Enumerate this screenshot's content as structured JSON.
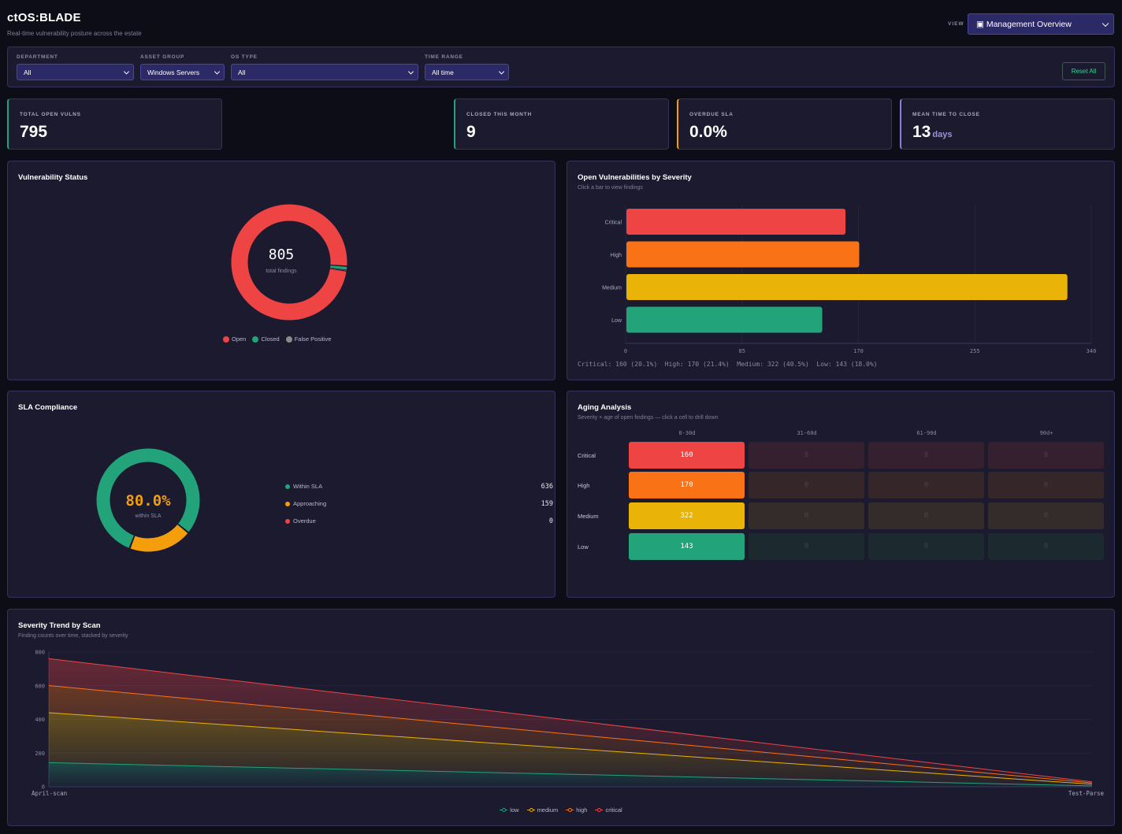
{
  "header": {
    "title": "ctOS:BLADE",
    "subtitle": "Real-time vulnerability posture across the estate",
    "view_label": "VIEW",
    "view_value": "▣ Management Overview"
  },
  "filters": [
    {
      "label": "DEPARTMENT",
      "value": "All"
    },
    {
      "label": "ASSET GROUP",
      "value": "Windows Servers"
    },
    {
      "label": "OS TYPE",
      "value": "All"
    },
    {
      "label": "TIME RANGE",
      "value": "All time"
    }
  ],
  "reset_label": "Reset All",
  "kpis": [
    {
      "label": "TOTAL OPEN VULNS",
      "value": "795",
      "unit": "",
      "color": "#22a37a"
    },
    {
      "label": "CLOSED THIS MONTH",
      "value": "9",
      "unit": "",
      "color": "#22a37a"
    },
    {
      "label": "OVERDUE SLA",
      "value": "0.0%",
      "unit": "",
      "color": "#f59e0b"
    },
    {
      "label": "MEAN TIME TO CLOSE",
      "value": "13",
      "unit": "days",
      "color": "#8b7fe0"
    }
  ],
  "status_panel": {
    "title": "Vulnerability Status",
    "center_value": "805",
    "center_label": "total findings",
    "legend": [
      {
        "name": "Open",
        "color": "#ef4444"
      },
      {
        "name": "Closed",
        "color": "#22a37a"
      },
      {
        "name": "False Positive",
        "color": "#8b8b8b"
      }
    ]
  },
  "severity_panel": {
    "title": "Open Vulnerabilities by Severity",
    "subtitle": "Click a bar to view findings",
    "summary": "Critical: 160 (20.1%)  High: 170 (21.4%)  Medium: 322 (40.5%)  Low: 143 (18.0%)"
  },
  "sla_panel": {
    "title": "SLA Compliance",
    "center_value": "80.0%",
    "center_label": "within SLA",
    "rows": [
      {
        "label": "Within SLA",
        "value": "636",
        "color": "#22a37a"
      },
      {
        "label": "Approaching",
        "value": "159",
        "color": "#f59e0b"
      },
      {
        "label": "Overdue",
        "value": "0",
        "color": "#ef4444"
      }
    ]
  },
  "aging_panel": {
    "title": "Aging Analysis",
    "subtitle": "Severity × age of open findings — click a cell to drill down",
    "columns": [
      "0-30d",
      "31-60d",
      "61-90d",
      "90d+"
    ],
    "rows": [
      {
        "label": "Critical",
        "values": [
          "160",
          "0",
          "0",
          "0"
        ],
        "color": "#ef4444",
        "dim": "#35202f"
      },
      {
        "label": "High",
        "values": [
          "170",
          "0",
          "0",
          "0"
        ],
        "color": "#f97316",
        "dim": "#35262a"
      },
      {
        "label": "Medium",
        "values": [
          "322",
          "0",
          "0",
          "0"
        ],
        "color": "#eab308",
        "dim": "#342c2a"
      },
      {
        "label": "Low",
        "values": [
          "143",
          "0",
          "0",
          "0"
        ],
        "color": "#22a37a",
        "dim": "#1c2a30"
      }
    ]
  },
  "trend_panel": {
    "title": "Severity Trend by Scan",
    "subtitle": "Finding counts over time, stacked by severity"
  },
  "chart_data": [
    {
      "type": "pie",
      "title": "Vulnerability Status",
      "categories": [
        "Open",
        "Closed",
        "False Positive"
      ],
      "values": [
        795,
        9,
        1
      ],
      "colors": [
        "#ef4444",
        "#22a37a",
        "#8b8b8b"
      ]
    },
    {
      "type": "bar",
      "orientation": "horizontal",
      "title": "Open Vulnerabilities by Severity",
      "categories": [
        "Critical",
        "High",
        "Medium",
        "Low"
      ],
      "values": [
        160,
        170,
        322,
        143
      ],
      "colors": [
        "#ef4444",
        "#f97316",
        "#eab308",
        "#22a37a"
      ],
      "xticks": [
        "0",
        "85",
        "170",
        "255",
        "340"
      ],
      "xlim": [
        0,
        340
      ]
    },
    {
      "type": "pie",
      "title": "SLA Compliance",
      "categories": [
        "Within SLA",
        "Approaching",
        "Overdue"
      ],
      "values": [
        636,
        159,
        0
      ],
      "colors": [
        "#22a37a",
        "#f59e0b",
        "#ef4444"
      ]
    },
    {
      "type": "area",
      "stacked": true,
      "title": "Severity Trend by Scan",
      "x": [
        "April-scan",
        "Test-Parse"
      ],
      "yticks": [
        "0",
        "200",
        "400",
        "600",
        "800"
      ],
      "ylim": [
        0,
        800
      ],
      "series": [
        {
          "name": "low",
          "values": [
            143,
            5
          ],
          "color": "#22a37a"
        },
        {
          "name": "medium",
          "values": [
            297,
            10
          ],
          "color": "#eab308"
        },
        {
          "name": "high",
          "values": [
            161,
            8
          ],
          "color": "#f97316"
        },
        {
          "name": "critical",
          "values": [
            160,
            6
          ],
          "color": "#ef4444"
        }
      ],
      "legend_position": "bottom"
    }
  ]
}
